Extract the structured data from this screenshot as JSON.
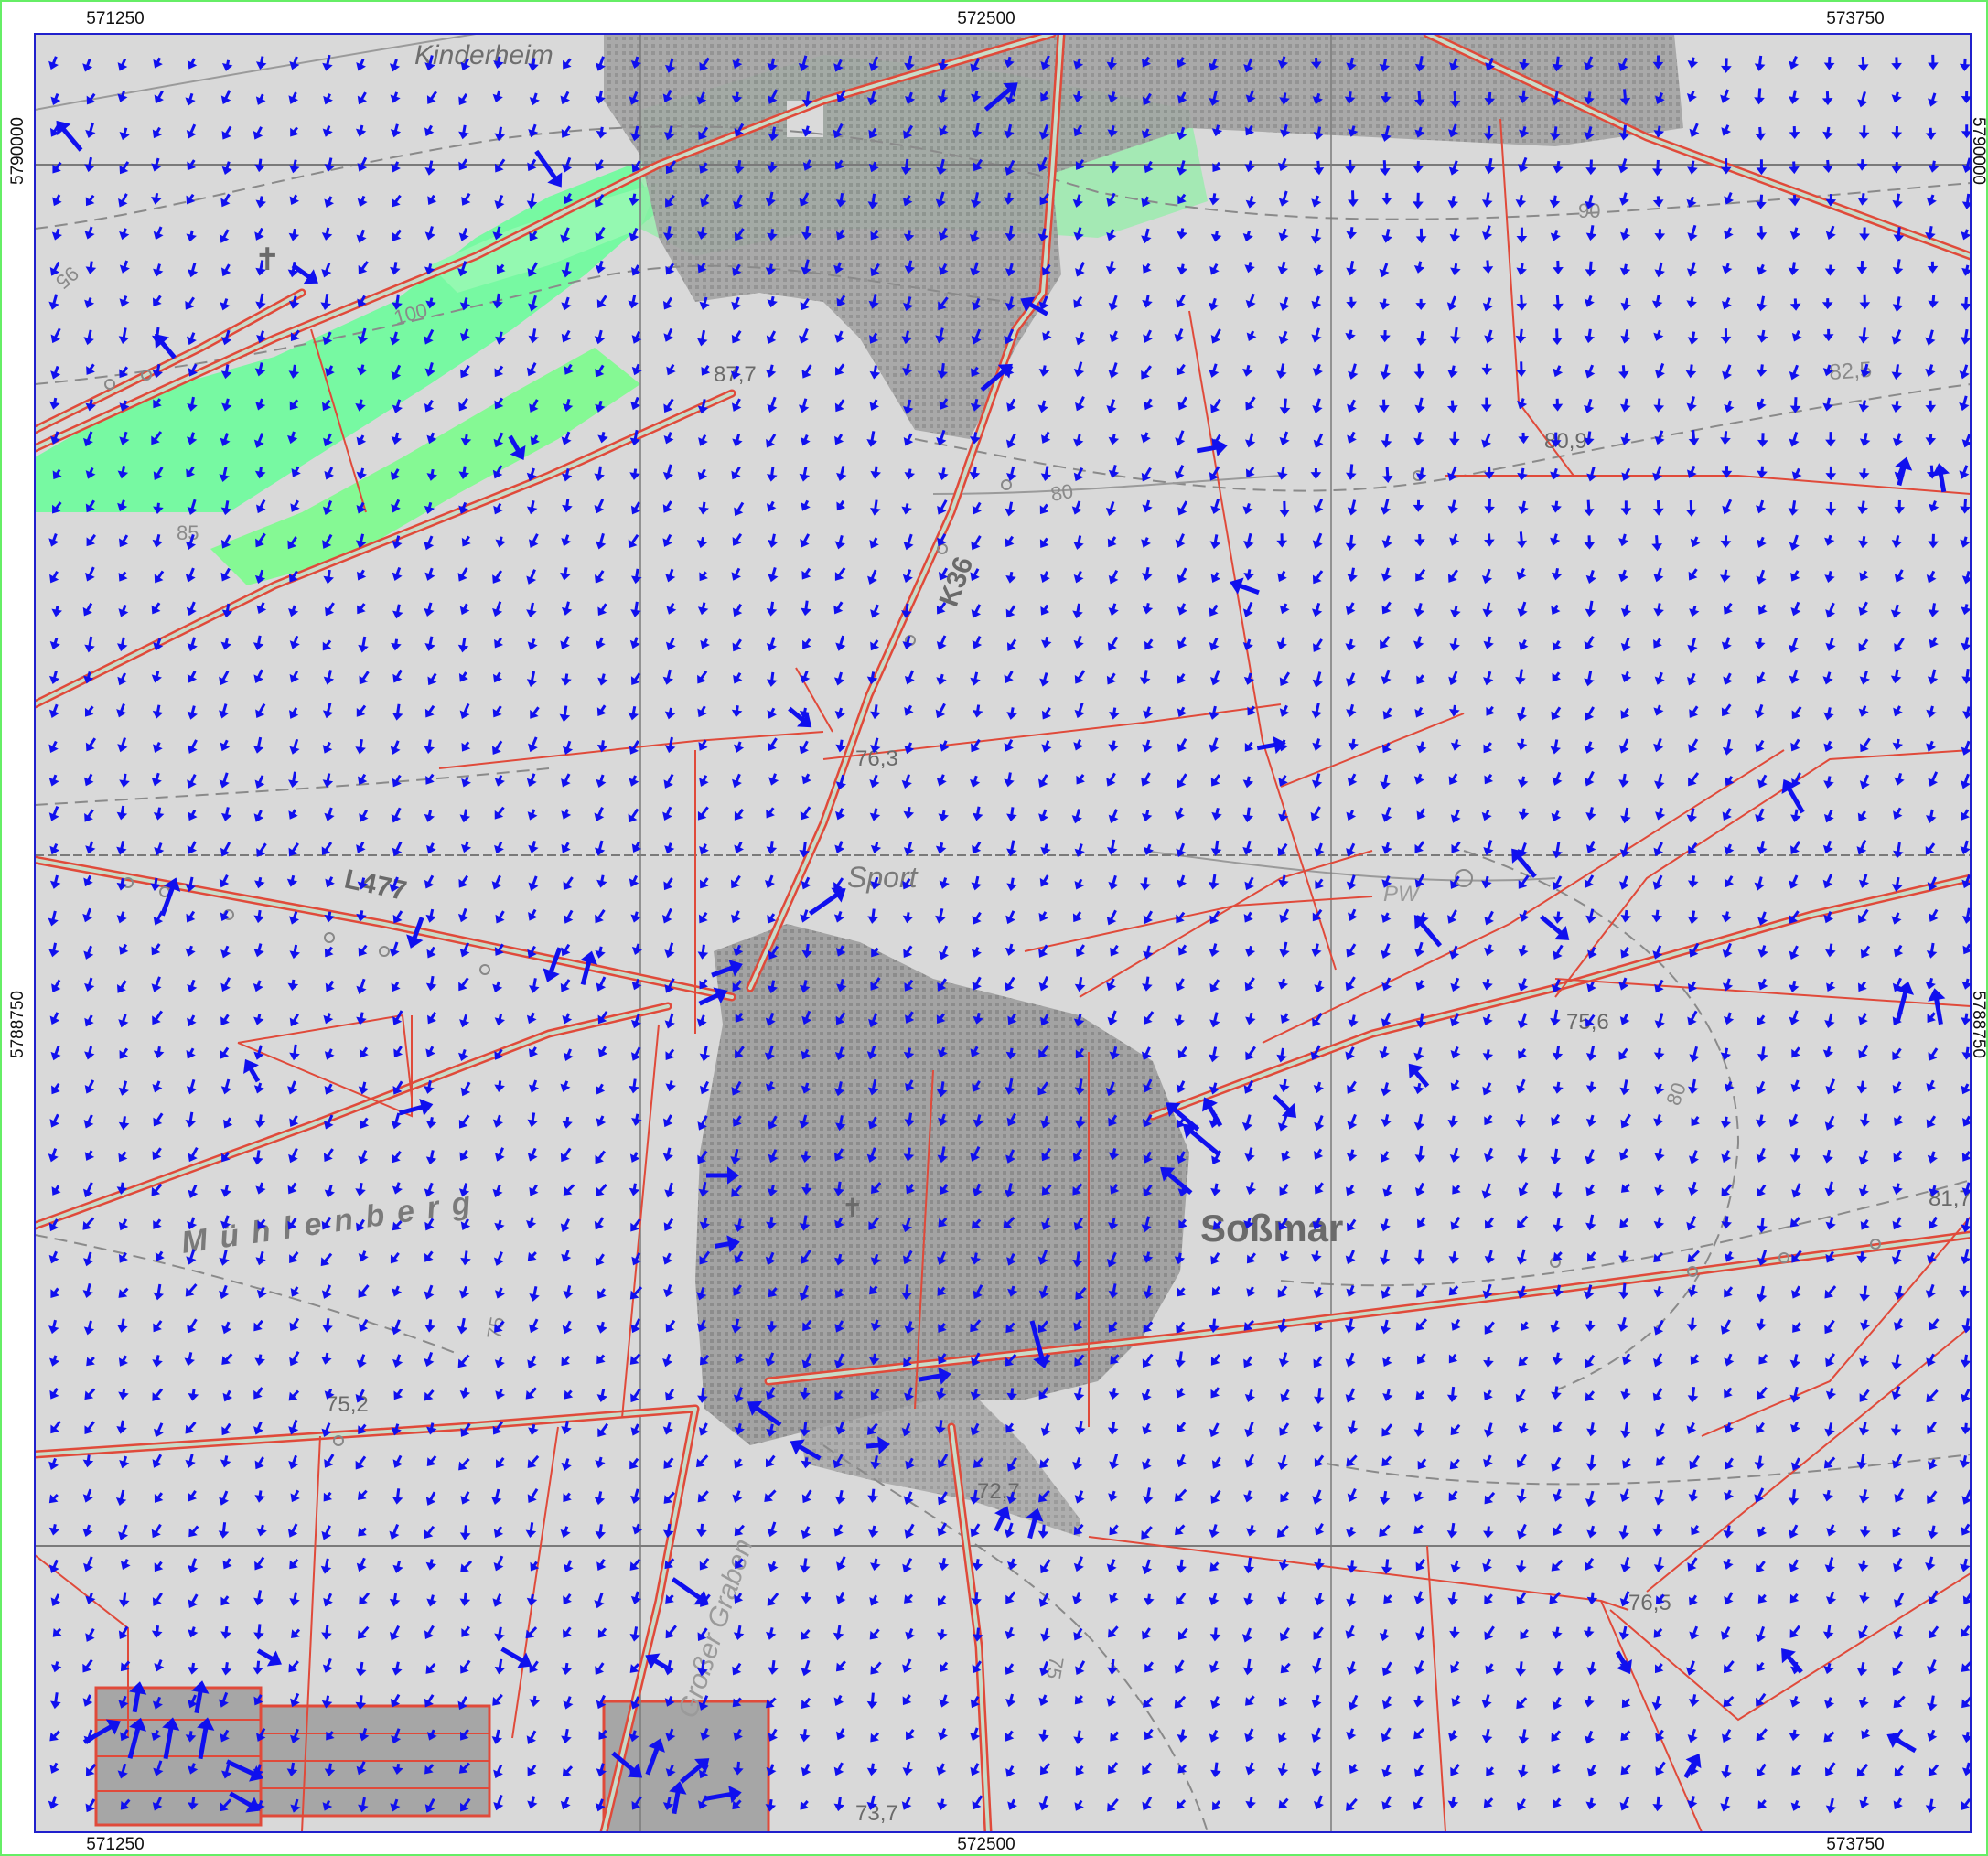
{
  "map": {
    "colors": {
      "background": "#d9d9d9",
      "arrow": "#1010ee",
      "wind_highlight": "#66ff99",
      "road_outline": "#e04a3a",
      "road_fill": "#c9dcc9",
      "contour": "#8a8a8a",
      "grid": "#7a7a7a",
      "frame": "#2020cc",
      "settlement": "#9e9e9e"
    },
    "axis_labels": {
      "top": [
        "571250",
        "572500",
        "573750"
      ],
      "bottom": [
        "571250",
        "572500",
        "573750"
      ],
      "left": [
        "5790000",
        "5788750"
      ],
      "right": [
        "5790000",
        "5788750"
      ]
    },
    "place_names": {
      "kinderheim": "Kinderheim",
      "muehlenberg": "Mühlenberg",
      "sossmar": "Soßmar",
      "sport": "Sport",
      "grosser_graben": "Großer Graben",
      "pw": "PW"
    },
    "road_labels": {
      "l477": "L477",
      "k36": "K36"
    },
    "elevations": {
      "e87_7": "87,7",
      "e80_9": "80,9",
      "e82_5": "82,5",
      "e76_3": "76,3",
      "e75_6": "75,6",
      "e81_7": "81,7",
      "e75_2": "75,2",
      "e72_7": "72,7",
      "e76_5": "76,5",
      "e73_7": "73,7"
    },
    "contour_labels": {
      "c95": "95",
      "c100": "100",
      "c85": "85",
      "c90": "90",
      "c80a": "80",
      "c80b": "80",
      "c75a": "75",
      "c75b": "75"
    }
  }
}
